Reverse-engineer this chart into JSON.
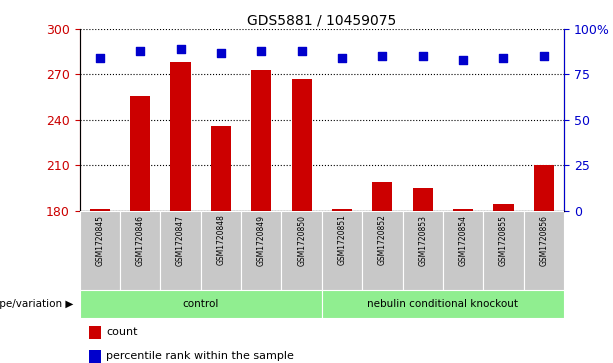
{
  "title": "GDS5881 / 10459075",
  "samples": [
    "GSM1720845",
    "GSM1720846",
    "GSM1720847",
    "GSM1720848",
    "GSM1720849",
    "GSM1720850",
    "GSM1720851",
    "GSM1720852",
    "GSM1720853",
    "GSM1720854",
    "GSM1720855",
    "GSM1720856"
  ],
  "counts": [
    181,
    256,
    278,
    236,
    273,
    267,
    181,
    199,
    195,
    181,
    184,
    210
  ],
  "percentile_ranks": [
    84,
    88,
    89,
    87,
    88,
    88,
    84,
    85,
    85,
    83,
    84,
    85
  ],
  "ylim_left": [
    180,
    300
  ],
  "ylim_right": [
    0,
    100
  ],
  "yticks_left": [
    180,
    210,
    240,
    270,
    300
  ],
  "yticks_right": [
    0,
    25,
    50,
    75,
    100
  ],
  "yticklabels_right": [
    "0",
    "25",
    "50",
    "75",
    "100%"
  ],
  "bar_color": "#cc0000",
  "dot_color": "#0000cc",
  "grid_color": "#000000",
  "bar_bottom": 180,
  "groups": [
    {
      "label": "control",
      "start": 0,
      "end": 5,
      "color": "#90ee90"
    },
    {
      "label": "nebulin conditional knockout",
      "start": 6,
      "end": 11,
      "color": "#90ee90"
    }
  ],
  "genotype_label": "genotype/variation",
  "xlabel_area_bg": "#c8c8c8",
  "left_axis_color": "#cc0000",
  "right_axis_color": "#0000cc",
  "bar_width": 0.5,
  "dot_size": 40,
  "dot_marker": "s",
  "legend_count_label": "count",
  "legend_pct_label": "percentile rank within the sample"
}
